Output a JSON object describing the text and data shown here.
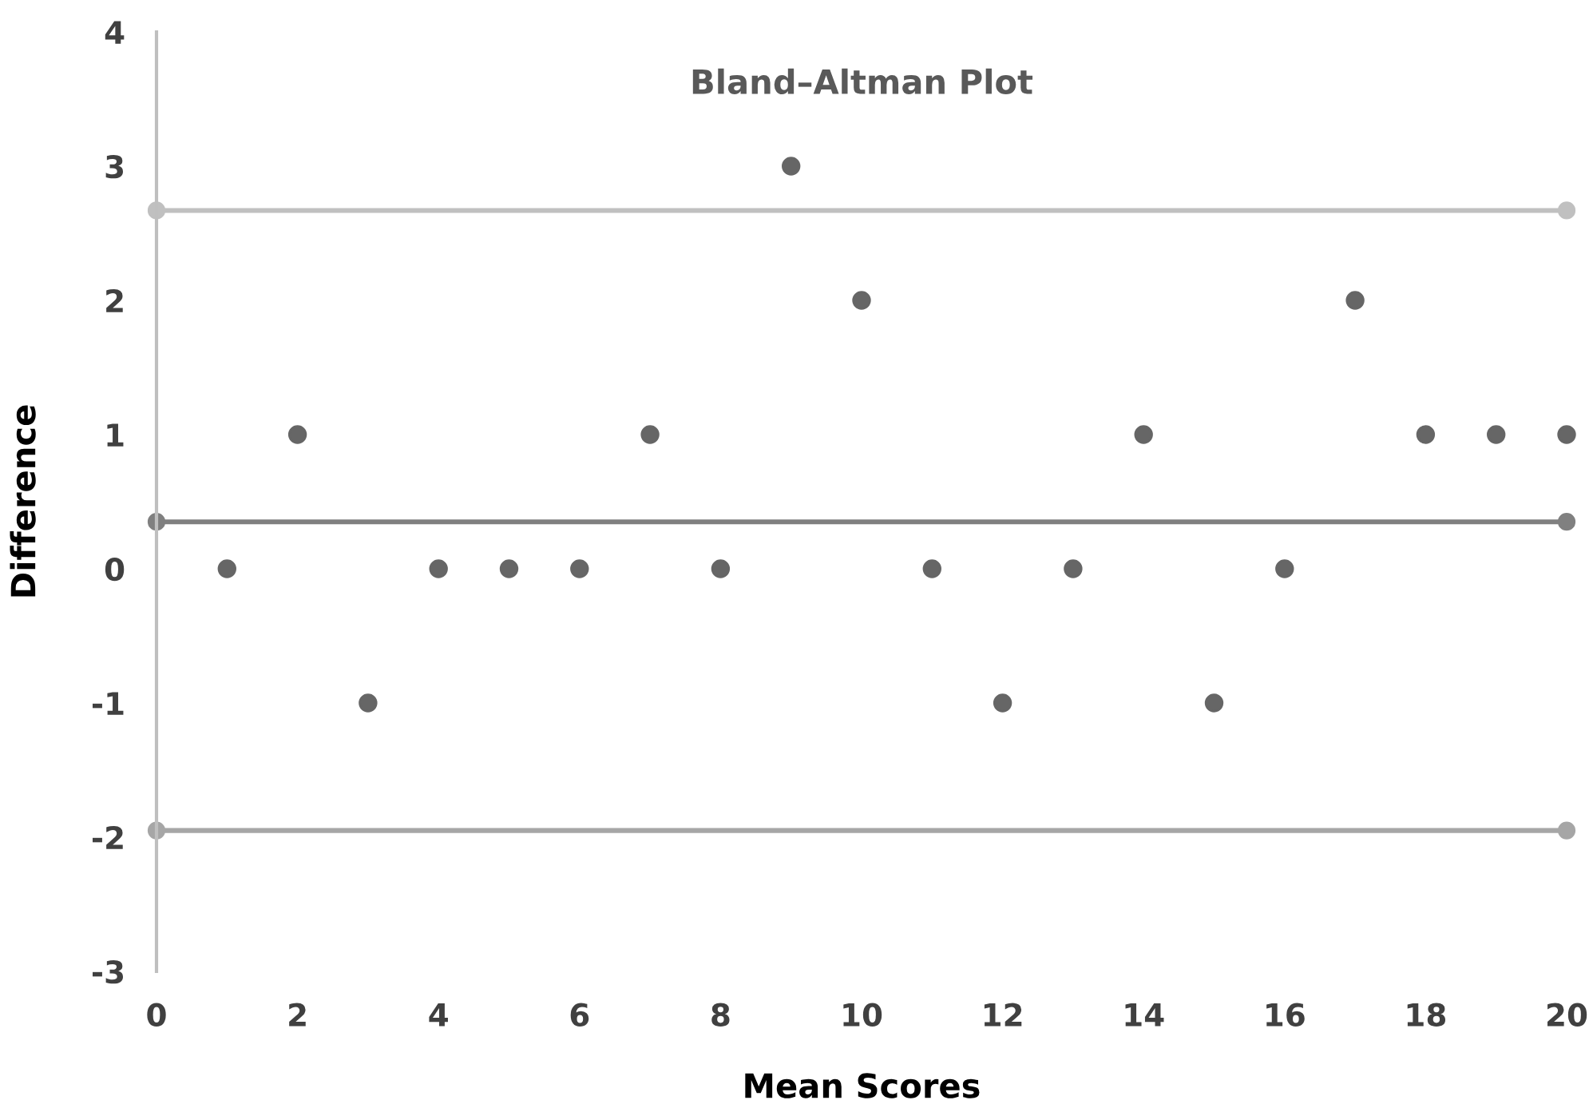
{
  "chart_data": {
    "type": "scatter",
    "title": "Bland–Altman Plot",
    "xlabel": "Mean Scores",
    "ylabel": "Difference",
    "xlim": [
      0,
      20
    ],
    "xticks": [
      0,
      2,
      4,
      6,
      8,
      10,
      12,
      14,
      16,
      18,
      20
    ],
    "ylim": [
      -3,
      4
    ],
    "yticks": [
      -3,
      -2,
      -1,
      0,
      1,
      2,
      3,
      4
    ],
    "grid": false,
    "marker": "circle",
    "series": [
      {
        "color": "#666666",
        "x": [
          1,
          2,
          3,
          4,
          5,
          6,
          7,
          8,
          9,
          10,
          11,
          12,
          13,
          14,
          15,
          16,
          17,
          18,
          19,
          20
        ],
        "values": [
          0,
          1,
          -1,
          0,
          0,
          0,
          1,
          0,
          3,
          2,
          0,
          -1,
          0,
          1,
          -1,
          0,
          2,
          1,
          1,
          1
        ]
      },
      {
        "type": "line",
        "color": "#c0c0c0",
        "x": [
          0,
          20
        ],
        "values": [
          2.67,
          2.67
        ]
      },
      {
        "type": "line",
        "color": "#808080",
        "x": [
          0,
          20
        ],
        "values": [
          0.35,
          0.35
        ]
      },
      {
        "type": "line",
        "color": "#a6a6a6",
        "x": [
          0,
          20
        ],
        "values": [
          -1.95,
          -1.95
        ]
      }
    ]
  }
}
